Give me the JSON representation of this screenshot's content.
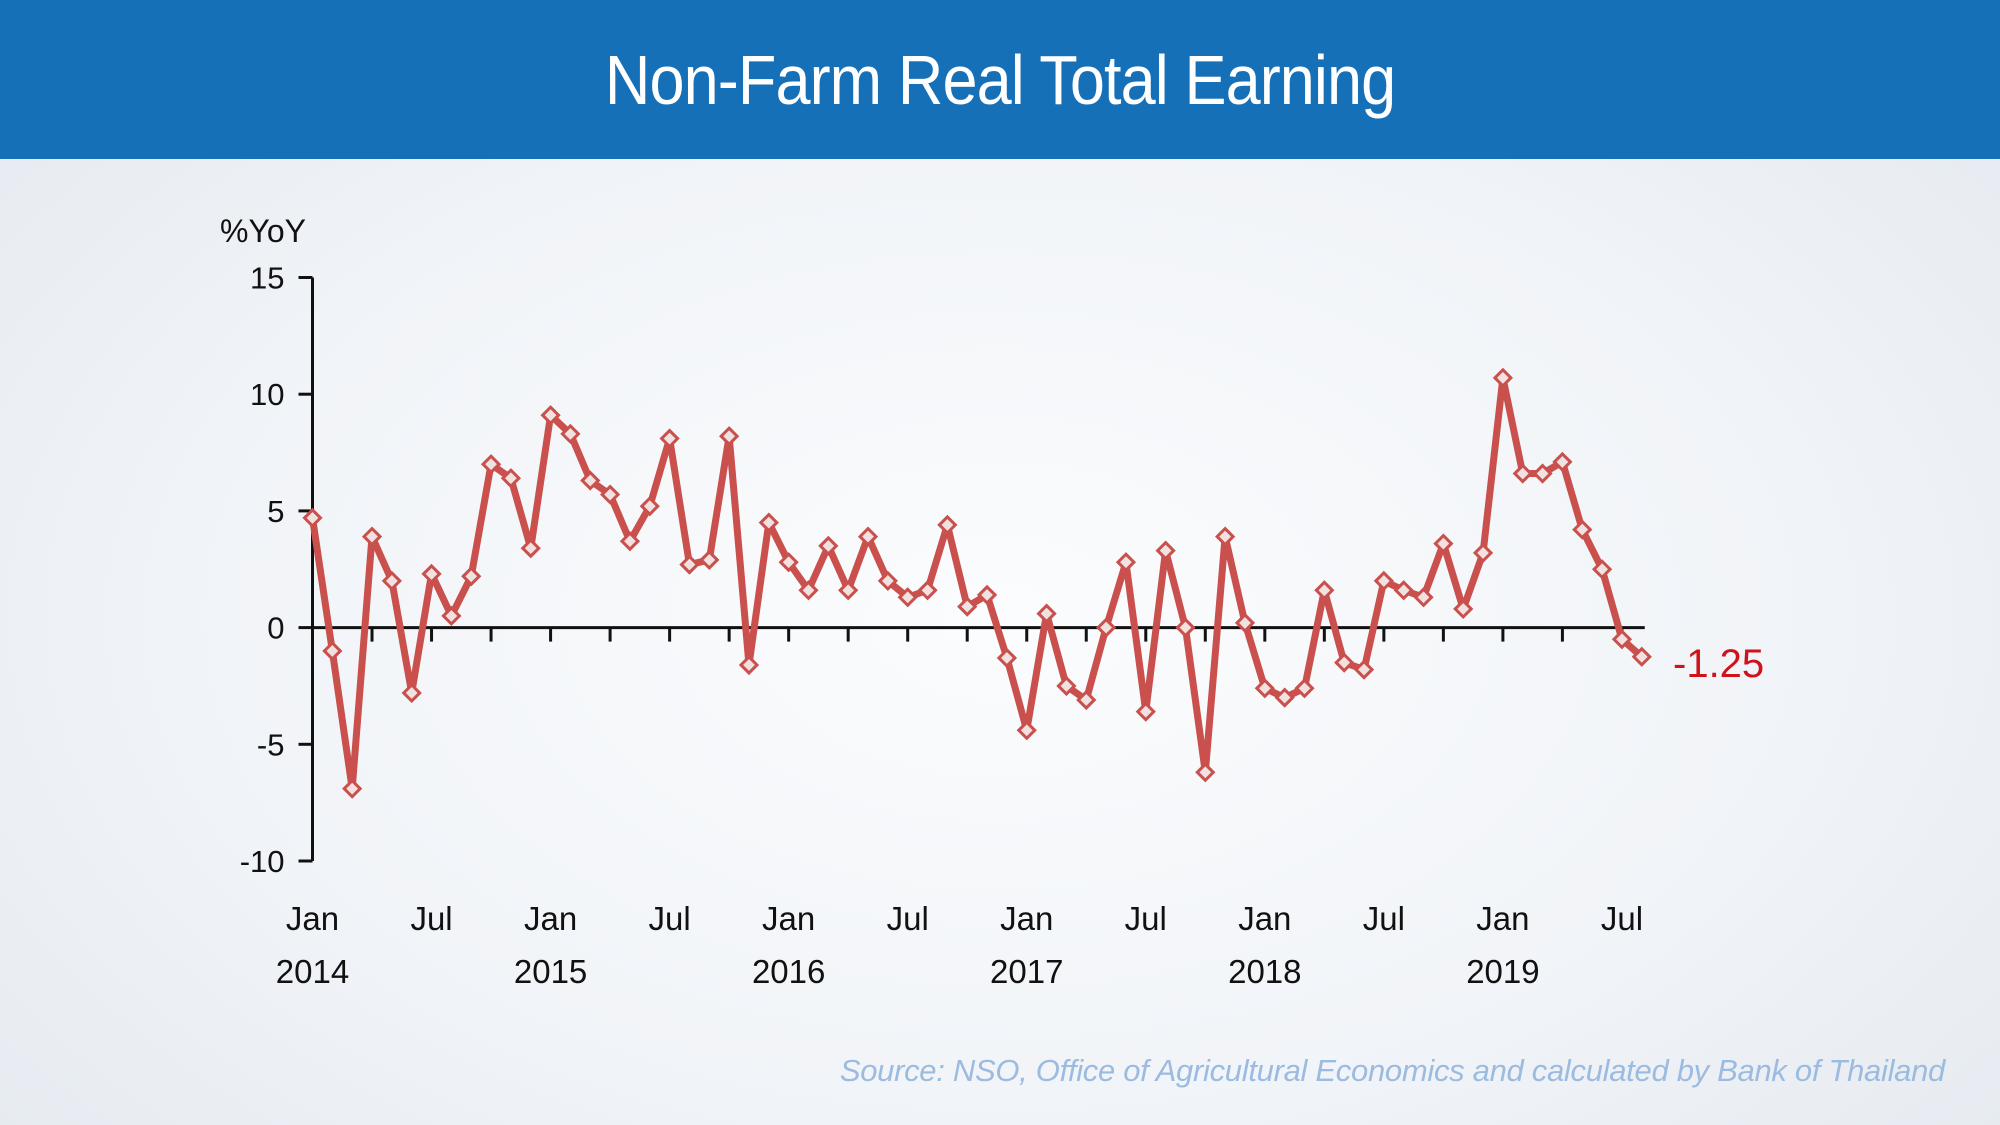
{
  "title": "Non-Farm Real Total Earning",
  "source": "Source: NSO, Office of Agricultural Economics and calculated by Bank of Thailand",
  "colors": {
    "header": "#1670b8",
    "series": "#c9504d",
    "last_value_label": "#d0121b",
    "source": "#9bbbe0"
  },
  "chart_data": {
    "type": "line",
    "title": "Non-Farm Real Total Earning",
    "ylabel": "%YoY",
    "xlabel": "",
    "ylim": [
      -10,
      15
    ],
    "yticks": [
      15,
      10,
      5,
      0,
      -5,
      -10
    ],
    "grid": false,
    "x_tick_labels": [
      {
        "month": "Jan",
        "year": "2014",
        "index": 0
      },
      {
        "month": "Jul",
        "year": "",
        "index": 6
      },
      {
        "month": "Jan",
        "year": "2015",
        "index": 12
      },
      {
        "month": "Jul",
        "year": "",
        "index": 18
      },
      {
        "month": "Jan",
        "year": "2016",
        "index": 24
      },
      {
        "month": "Jul",
        "year": "",
        "index": 30
      },
      {
        "month": "Jan",
        "year": "2017",
        "index": 36
      },
      {
        "month": "Jul",
        "year": "",
        "index": 42
      },
      {
        "month": "Jan",
        "year": "2018",
        "index": 48
      },
      {
        "month": "Jul",
        "year": "",
        "index": 54
      },
      {
        "month": "Jan",
        "year": "2019",
        "index": 60
      },
      {
        "month": "Jul",
        "year": "",
        "index": 66
      }
    ],
    "x_start": "2014-01",
    "x_end": "2019-08",
    "frequency": "monthly",
    "values": [
      4.7,
      -1.0,
      -6.9,
      3.9,
      2.0,
      -2.8,
      2.3,
      0.5,
      2.2,
      7.0,
      6.4,
      3.4,
      9.1,
      8.3,
      6.3,
      5.7,
      3.7,
      5.2,
      8.1,
      2.7,
      2.9,
      8.2,
      -1.6,
      4.5,
      2.8,
      1.6,
      3.5,
      1.6,
      3.9,
      2.0,
      1.3,
      1.6,
      4.4,
      0.9,
      1.4,
      -1.3,
      -4.4,
      0.6,
      -2.5,
      -3.1,
      0.0,
      2.8,
      -3.6,
      3.3,
      0.0,
      -6.2,
      3.9,
      0.2,
      -2.6,
      -3.0,
      -2.6,
      1.6,
      -1.5,
      -1.8,
      2.0,
      1.6,
      1.3,
      3.6,
      0.8,
      3.2,
      10.7,
      6.6,
      6.6,
      7.1,
      4.2,
      2.5,
      -0.5,
      -1.25
    ],
    "last_value_label": "-1.25"
  }
}
